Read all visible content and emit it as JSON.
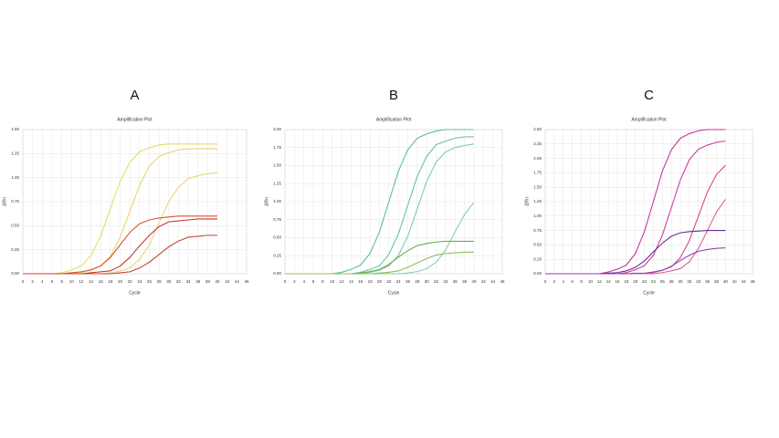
{
  "chart_data": [
    {
      "type": "line",
      "panel_label": "A",
      "title": "Amplification Plot",
      "xlabel": "Cycle",
      "ylabel": "ΔRn",
      "grid": true,
      "x": [
        0,
        2,
        4,
        6,
        8,
        10,
        12,
        14,
        16,
        18,
        20,
        22,
        24,
        26,
        28,
        30,
        32,
        34,
        36,
        38,
        40
      ],
      "xlim": [
        0,
        46
      ],
      "xticks": [
        0,
        2,
        4,
        6,
        8,
        10,
        12,
        14,
        16,
        18,
        20,
        22,
        24,
        26,
        28,
        30,
        32,
        34,
        36,
        38,
        40,
        42,
        44,
        46
      ],
      "ylim": [
        0,
        1.5
      ],
      "yticks": [
        {
          "value": 0,
          "label": "0.00"
        },
        {
          "value": 0.25,
          "label": "0.25"
        },
        {
          "value": 0.5,
          "label": "0.50"
        },
        {
          "value": 0.75,
          "label": "0.75"
        },
        {
          "value": 1,
          "label": "1.00"
        },
        {
          "value": 1.25,
          "label": "1.25"
        },
        {
          "value": 1.5,
          "label": "1.50"
        }
      ],
      "series": [
        {
          "color": "#e3dc6a",
          "values": [
            0,
            0,
            0,
            0,
            0.01,
            0.04,
            0.08,
            0.19,
            0.39,
            0.68,
            0.96,
            1.16,
            1.27,
            1.31,
            1.34,
            1.35,
            1.35,
            1.35,
            1.35,
            1.35,
            1.35
          ]
        },
        {
          "color": "#e8d66a",
          "values": [
            0,
            0,
            0,
            0,
            0,
            0,
            0.01,
            0.04,
            0.08,
            0.18,
            0.38,
            0.65,
            0.92,
            1.12,
            1.22,
            1.26,
            1.29,
            1.3,
            1.3,
            1.3,
            1.3
          ]
        },
        {
          "color": "#ecd37a",
          "values": [
            0,
            0,
            0,
            0,
            0,
            0,
            0,
            0,
            0,
            0.01,
            0.03,
            0.06,
            0.15,
            0.3,
            0.53,
            0.75,
            0.9,
            0.99,
            1.02,
            1.04,
            1.05
          ]
        },
        {
          "color": "#d9532c",
          "values": [
            0,
            0,
            0,
            0,
            0,
            0.01,
            0.02,
            0.04,
            0.08,
            0.17,
            0.3,
            0.43,
            0.52,
            0.56,
            0.58,
            0.59,
            0.6,
            0.6,
            0.6,
            0.6,
            0.6
          ]
        },
        {
          "color": "#c0392b",
          "values": [
            0,
            0,
            0,
            0,
            0,
            0,
            0,
            0.01,
            0.02,
            0.03,
            0.08,
            0.17,
            0.29,
            0.4,
            0.49,
            0.54,
            0.55,
            0.56,
            0.57,
            0.57,
            0.57
          ]
        },
        {
          "color": "#c9463a",
          "values": [
            0,
            0,
            0,
            0,
            0,
            0,
            0,
            0,
            0,
            0,
            0.01,
            0.02,
            0.06,
            0.12,
            0.2,
            0.28,
            0.34,
            0.38,
            0.39,
            0.4,
            0.4
          ]
        }
      ]
    },
    {
      "type": "line",
      "panel_label": "B",
      "title": "Amplification Plot",
      "xlabel": "Cycle",
      "ylabel": "ΔRn",
      "grid": true,
      "x": [
        0,
        2,
        4,
        6,
        8,
        10,
        12,
        14,
        16,
        18,
        20,
        22,
        24,
        26,
        28,
        30,
        32,
        34,
        36,
        38,
        40
      ],
      "xlim": [
        0,
        46
      ],
      "xticks": [
        0,
        2,
        4,
        6,
        8,
        10,
        12,
        14,
        16,
        18,
        20,
        22,
        24,
        26,
        28,
        30,
        32,
        34,
        36,
        38,
        40,
        42,
        44,
        46
      ],
      "ylim": [
        0,
        2
      ],
      "yticks": [
        {
          "value": 0,
          "label": "0.00"
        },
        {
          "value": 0.25,
          "label": "0.25"
        },
        {
          "value": 0.5,
          "label": "0.50"
        },
        {
          "value": 0.75,
          "label": "0.75"
        },
        {
          "value": 1,
          "label": "1.00"
        },
        {
          "value": 1.25,
          "label": "1.25"
        },
        {
          "value": 1.5,
          "label": "1.50"
        },
        {
          "value": 1.75,
          "label": "1.75"
        },
        {
          "value": 2,
          "label": "2.00"
        }
      ],
      "series": [
        {
          "color": "#5fbf8f",
          "values": [
            0,
            0,
            0,
            0,
            0,
            0,
            0.02,
            0.06,
            0.12,
            0.28,
            0.58,
            1.0,
            1.42,
            1.72,
            1.88,
            1.94,
            1.98,
            2.0,
            2.0,
            2.0,
            2.0
          ]
        },
        {
          "color": "#6cc49a",
          "values": [
            0,
            0,
            0,
            0,
            0,
            0,
            0,
            0,
            0.02,
            0.06,
            0.11,
            0.27,
            0.55,
            0.95,
            1.35,
            1.63,
            1.79,
            1.84,
            1.88,
            1.9,
            1.9
          ]
        },
        {
          "color": "#7fcba8",
          "values": [
            0,
            0,
            0,
            0,
            0,
            0,
            0,
            0,
            0,
            0.02,
            0.05,
            0.11,
            0.25,
            0.52,
            0.9,
            1.28,
            1.55,
            1.69,
            1.75,
            1.78,
            1.8
          ]
        },
        {
          "color": "#86cfae",
          "values": [
            0,
            0,
            0,
            0,
            0,
            0,
            0,
            0,
            0,
            0,
            0,
            0,
            0,
            0.01,
            0.03,
            0.07,
            0.16,
            0.33,
            0.58,
            0.82,
            0.99
          ]
        },
        {
          "color": "#6ab04c",
          "values": [
            0,
            0,
            0,
            0,
            0,
            0,
            0,
            0,
            0.01,
            0.03,
            0.06,
            0.13,
            0.23,
            0.32,
            0.39,
            0.42,
            0.44,
            0.45,
            0.45,
            0.45,
            0.45
          ]
        },
        {
          "color": "#8cc152",
          "values": [
            0,
            0,
            0,
            0,
            0,
            0,
            0,
            0,
            0,
            0,
            0.01,
            0.02,
            0.04,
            0.09,
            0.15,
            0.21,
            0.26,
            0.28,
            0.29,
            0.3,
            0.3
          ]
        }
      ]
    },
    {
      "type": "line",
      "panel_label": "C",
      "title": "Amplification Plot",
      "xlabel": "Cycle",
      "ylabel": "ΔRn",
      "grid": true,
      "x": [
        0,
        2,
        4,
        6,
        8,
        10,
        12,
        14,
        16,
        18,
        20,
        22,
        24,
        26,
        28,
        30,
        32,
        34,
        36,
        38,
        40
      ],
      "xlim": [
        0,
        46
      ],
      "xticks": [
        0,
        2,
        4,
        6,
        8,
        10,
        12,
        14,
        16,
        18,
        20,
        22,
        24,
        26,
        28,
        30,
        32,
        34,
        36,
        38,
        40,
        42,
        44,
        46
      ],
      "ylim": [
        0,
        2.5
      ],
      "yticks": [
        {
          "value": 0,
          "label": "0.00"
        },
        {
          "value": 0.25,
          "label": "0.25"
        },
        {
          "value": 0.5,
          "label": "0.50"
        },
        {
          "value": 0.75,
          "label": "0.75"
        },
        {
          "value": 1,
          "label": "1.00"
        },
        {
          "value": 1.25,
          "label": "1.25"
        },
        {
          "value": 1.5,
          "label": "1.50"
        },
        {
          "value": 1.75,
          "label": "1.75"
        },
        {
          "value": 2,
          "label": "2.00"
        },
        {
          "value": 2.25,
          "label": "2.25"
        },
        {
          "value": 2.5,
          "label": "2.50"
        }
      ],
      "series": [
        {
          "color": "#c2389a",
          "values": [
            0,
            0,
            0,
            0,
            0,
            0,
            0,
            0.03,
            0.08,
            0.15,
            0.35,
            0.73,
            1.25,
            1.78,
            2.15,
            2.35,
            2.43,
            2.48,
            2.5,
            2.5,
            2.5
          ]
        },
        {
          "color": "#cc3f9e",
          "values": [
            0,
            0,
            0,
            0,
            0,
            0,
            0,
            0,
            0,
            0.02,
            0.07,
            0.14,
            0.32,
            0.67,
            1.15,
            1.63,
            1.98,
            2.16,
            2.23,
            2.28,
            2.3
          ]
        },
        {
          "color": "#d44a8e",
          "values": [
            0,
            0,
            0,
            0,
            0,
            0,
            0,
            0,
            0,
            0,
            0,
            0,
            0.02,
            0.06,
            0.12,
            0.28,
            0.58,
            1.0,
            1.42,
            1.72,
            1.88
          ]
        },
        {
          "color": "#d9609c",
          "values": [
            0,
            0,
            0,
            0,
            0,
            0,
            0,
            0,
            0,
            0,
            0,
            0,
            0,
            0.02,
            0.05,
            0.09,
            0.21,
            0.44,
            0.75,
            1.07,
            1.29
          ]
        },
        {
          "color": "#6a2c91",
          "values": [
            0,
            0,
            0,
            0,
            0,
            0,
            0,
            0.01,
            0.02,
            0.05,
            0.11,
            0.22,
            0.38,
            0.53,
            0.65,
            0.71,
            0.73,
            0.74,
            0.75,
            0.75,
            0.75
          ]
        },
        {
          "color": "#8e44ad",
          "values": [
            0,
            0,
            0,
            0,
            0,
            0,
            0,
            0,
            0,
            0,
            0.01,
            0.01,
            0.03,
            0.06,
            0.13,
            0.23,
            0.32,
            0.39,
            0.42,
            0.44,
            0.45
          ]
        }
      ]
    }
  ]
}
